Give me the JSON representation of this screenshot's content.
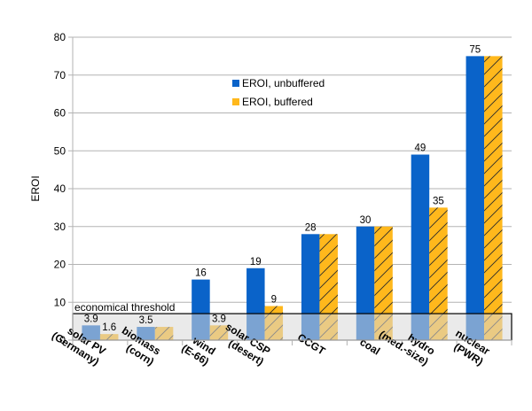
{
  "chart_data": {
    "type": "bar",
    "ylabel": "EROI",
    "xlabel": "",
    "ylim": [
      0,
      80
    ],
    "yticks": [
      0,
      10,
      20,
      30,
      40,
      50,
      60,
      70,
      80
    ],
    "grid": "horizontal",
    "legend_position": "upper-middle",
    "categories": [
      [
        "solar PV",
        "(Germany)"
      ],
      [
        "biomass",
        "(corn)"
      ],
      [
        "wind",
        "(E-66)"
      ],
      [
        "solar CSP",
        "(desert)"
      ],
      [
        "CCGT"
      ],
      [
        "coal"
      ],
      [
        "hydro",
        "(med.-size)"
      ],
      [
        "nuclear",
        "(PWR)"
      ]
    ],
    "series": [
      {
        "name": "EROI, unbuffered",
        "color": "#0a63c9",
        "values": [
          3.9,
          3.5,
          16,
          19,
          28,
          30,
          49,
          75
        ],
        "labels": [
          "3.9",
          "3.5",
          "16",
          "19",
          "28",
          "30",
          "49",
          "75"
        ]
      },
      {
        "name": "EROI, buffered",
        "color": "#ffb81c",
        "pattern": "hatched",
        "values": [
          1.6,
          3.5,
          3.9,
          9,
          28,
          30,
          35,
          75
        ],
        "labels": [
          "1.6",
          "",
          "3.9",
          "9",
          "",
          "",
          "35",
          ""
        ]
      }
    ],
    "threshold": {
      "label": "economical threshold",
      "value": 7
    }
  }
}
